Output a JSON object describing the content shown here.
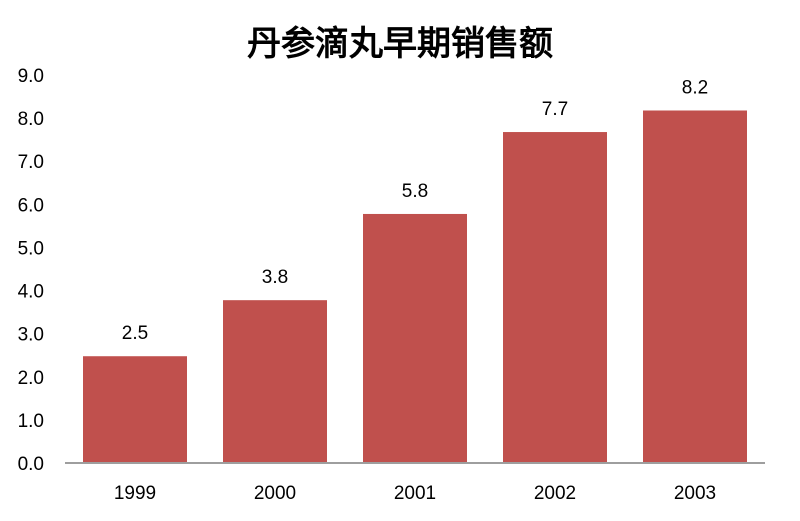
{
  "chart_data": {
    "type": "bar",
    "title": "丹参滴丸早期销售额",
    "categories": [
      "1999",
      "2000",
      "2001",
      "2002",
      "2003"
    ],
    "values": [
      2.5,
      3.8,
      5.8,
      7.7,
      8.2
    ],
    "data_labels": [
      "2.5",
      "3.8",
      "5.8",
      "7.7",
      "8.2"
    ],
    "yticks": [
      "0.0",
      "1.0",
      "2.0",
      "3.0",
      "4.0",
      "5.0",
      "6.0",
      "7.0",
      "8.0",
      "9.0"
    ],
    "ylim": [
      0,
      9
    ],
    "grid": false,
    "legend": "none",
    "bar_color": "#c0504d",
    "bar_outline_color": "#ffffff"
  }
}
